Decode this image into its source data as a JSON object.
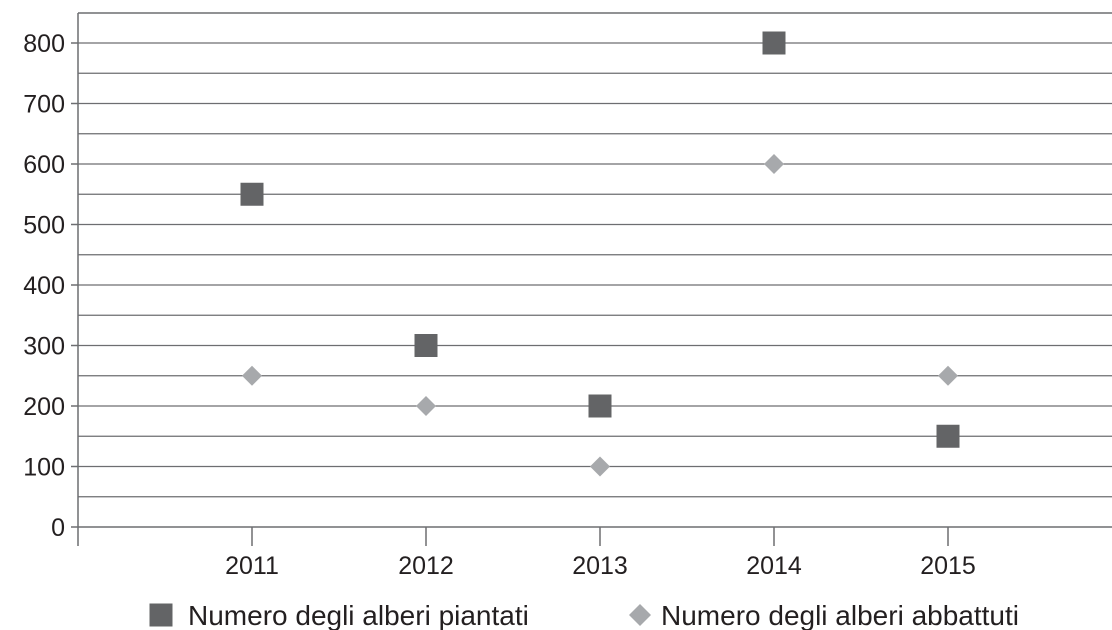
{
  "chart_data": {
    "type": "scatter",
    "title": "",
    "xlabel": "",
    "ylabel": "",
    "categories": [
      "2011",
      "2012",
      "2013",
      "2014",
      "2015"
    ],
    "y_ticks": [
      0,
      100,
      200,
      300,
      400,
      500,
      600,
      700,
      800
    ],
    "ylim": [
      0,
      800
    ],
    "grid": true,
    "legend_position": "bottom",
    "series": [
      {
        "name": "Numero degli alberi piantati",
        "marker": "square",
        "color": "#636466",
        "values": [
          550,
          300,
          200,
          800,
          150
        ]
      },
      {
        "name": "Numero degli alberi abbattuti",
        "marker": "diamond",
        "color": "#a7a9ac",
        "values": [
          250,
          200,
          100,
          600,
          250
        ]
      }
    ]
  }
}
